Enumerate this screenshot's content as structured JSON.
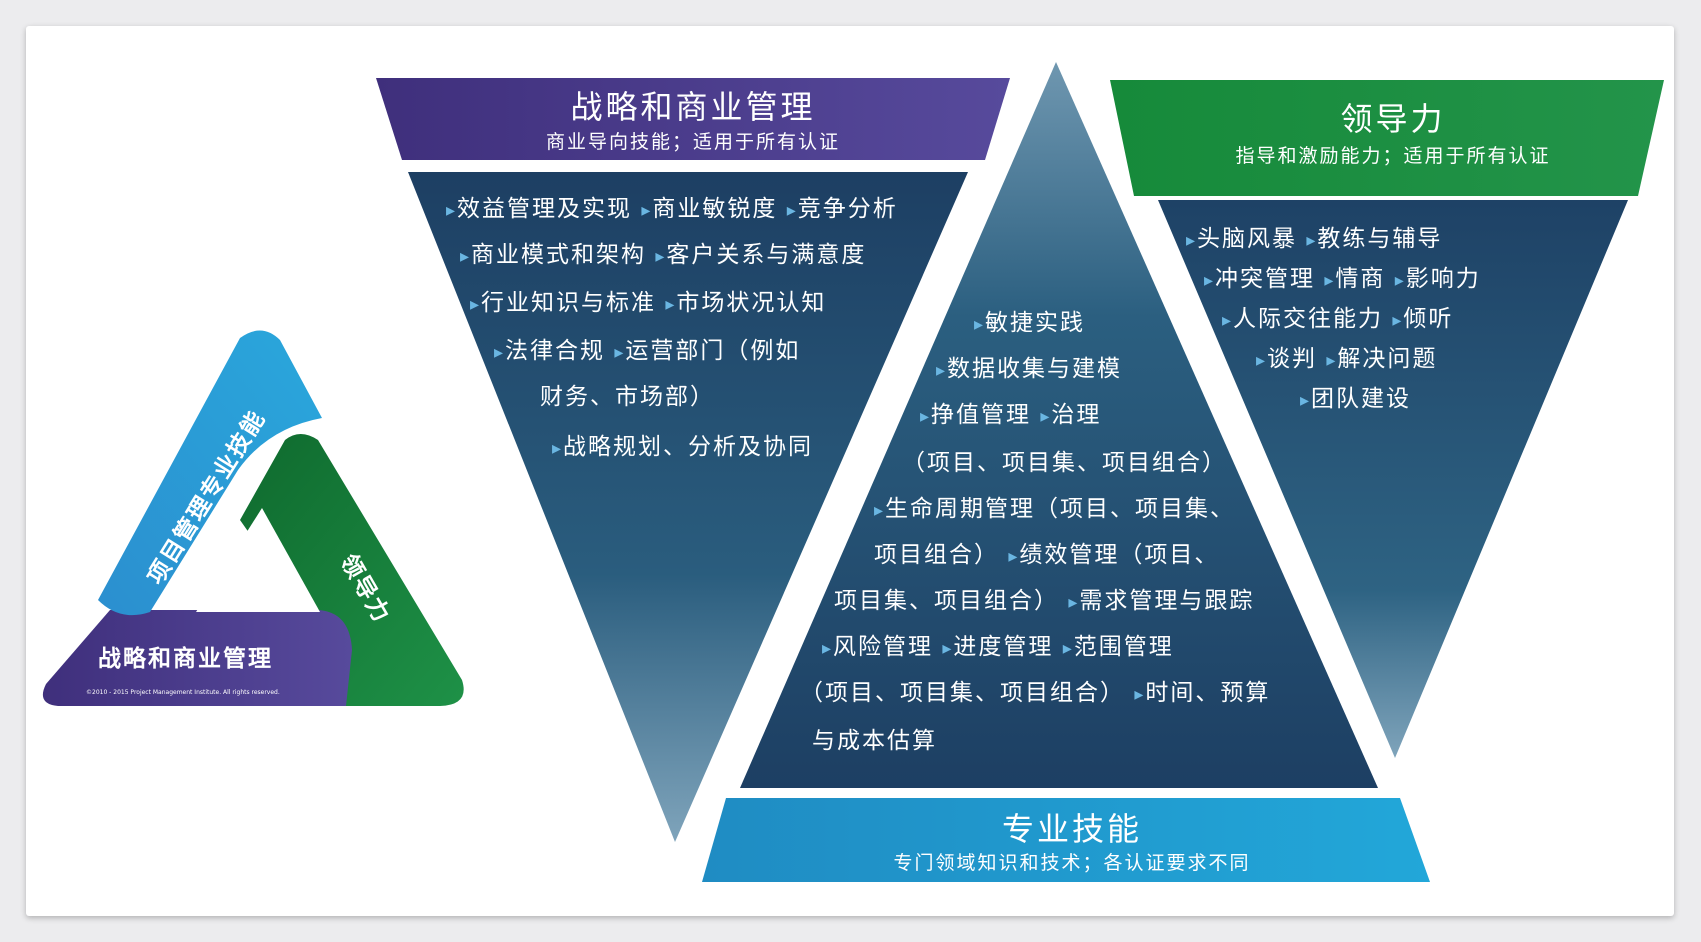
{
  "colors": {
    "purple": "#4a3b8c",
    "green": "#1a8a3c",
    "blue": "#1a95c8",
    "navy": "#214e6e",
    "bullet": "#6ab6e2"
  },
  "logo": {
    "technical_label": "项目管理专业技能",
    "leadership_label": "领导力",
    "strategic_label": "战略和商业管理",
    "copyright": "©2010 - 2015 Project Management Institute. All rights reserved."
  },
  "strategic": {
    "title": "战略和商业管理",
    "subtitle": "商业导向技能；适用于所有认证",
    "lines": [
      "效益管理及实现 ▸商业敏锐度 ▸竞争分析",
      "商业模式和架构 ▸客户关系与满意度",
      "行业知识与标准 ▸市场状况认知",
      "法律合规 ▸运营部门（例如",
      "财务、市场部）",
      "战略规划、分析及协同"
    ]
  },
  "leadership": {
    "title": "领导力",
    "subtitle": "指导和激励能力；适用于所有认证",
    "lines": [
      "头脑风暴 ▸教练与辅导",
      "冲突管理 ▸情商 ▸影响力",
      "人际交往能力 ▸倾听",
      "谈判 ▸解决问题",
      "团队建设"
    ]
  },
  "technical": {
    "title": "专业技能",
    "subtitle": "专门领域知识和技术；各认证要求不同",
    "lines": [
      "敏捷实践",
      "数据收集与建模",
      "挣值管理 ▸治理",
      "（项目、项目集、项目组合）",
      "生命周期管理（项目、项目集、",
      "项目组合）▸绩效管理（项目、",
      "项目集、项目组合）▸需求管理与跟踪",
      "风险管理 ▸进度管理 ▸范围管理",
      "（项目、项目集、项目组合）▸时间、预算",
      "与成本估算"
    ]
  }
}
